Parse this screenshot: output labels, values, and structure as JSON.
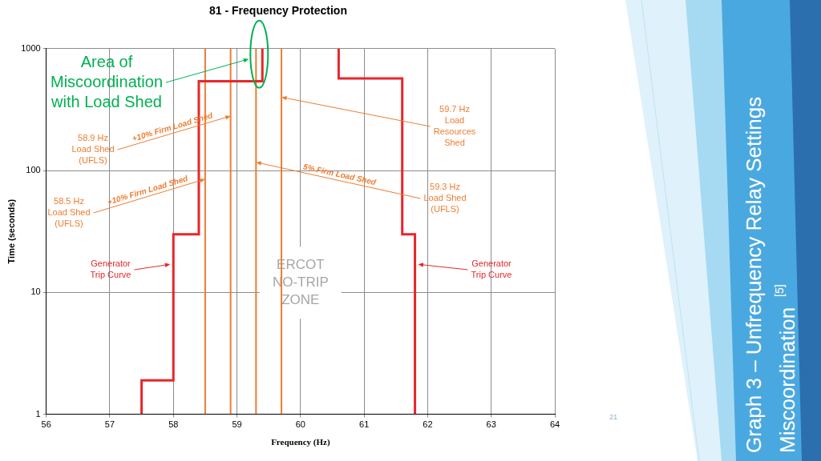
{
  "chart_data": {
    "type": "line",
    "title": "81 - Frequency Protection",
    "x_label": "Frequency (Hz)",
    "y_label": "Time (seconds)",
    "log": "y",
    "grid": true,
    "xlim": [
      56,
      64
    ],
    "xticks": [
      56,
      57,
      58,
      59,
      60,
      61,
      62,
      63,
      64
    ],
    "ylim": [
      1,
      1000
    ],
    "yticks": [
      1,
      10,
      100,
      1000
    ],
    "series": [
      {
        "color": "#e8262b",
        "x": [
          57.5,
          57.5,
          58,
          58,
          58.4,
          58.4,
          59.4,
          59.4
        ],
        "values": [
          1,
          1.9,
          1.9,
          30,
          30,
          540,
          540,
          1000
        ]
      },
      {
        "color": "#e8262b",
        "x": [
          60.6,
          60.6,
          61.6,
          61.6,
          61.8,
          61.8
        ],
        "values": [
          1000,
          570,
          570,
          30,
          30,
          1
        ]
      },
      {
        "color": "#ed7d31",
        "x": [
          58.5,
          58.5
        ],
        "values": [
          1,
          1000
        ]
      },
      {
        "color": "#ed7d31",
        "x": [
          58.9,
          58.9
        ],
        "values": [
          1,
          1000
        ]
      },
      {
        "color": "#ed7d31",
        "x": [
          59.3,
          59.3
        ],
        "values": [
          1,
          1000
        ]
      },
      {
        "color": "#ed7d31",
        "x": [
          59.7,
          59.7
        ],
        "values": [
          1,
          1000
        ]
      }
    ],
    "annotations": [
      {
        "text": "Area of\nMiscoordination\nwith Load Shed",
        "x": 59.35,
        "y": 900
      },
      {
        "text": "58.9 Hz\nLoad Shed\n(UFLS)",
        "x": 58.9,
        "y": 280,
        "note": "+10% Firm Load Shed"
      },
      {
        "text": "58.5 Hz\nLoad Shed\n(UFLS)",
        "x": 58.5,
        "y": 85,
        "note": "+10% Firm Load Shed"
      },
      {
        "text": "59.7 Hz\nLoad\nResources\nShed",
        "x": 59.7,
        "y": 400
      },
      {
        "text": "59.3 Hz\nLoad Shed\n(UFLS)",
        "x": 59.3,
        "y": 117,
        "note": "5% Firm Load Shed"
      },
      {
        "text": "Generator\nTrip Curve",
        "x": 57.95,
        "y": 17
      },
      {
        "text": "Generator\nTrip Curve",
        "x": 61.85,
        "y": 17
      }
    ],
    "zone_label": {
      "text": "ERCOT\nNO-TRIP\nZONE",
      "x": 60,
      "y": 12
    }
  },
  "slide": {
    "title": [
      "Graph 3 – Unfrequency Relay Settings",
      "Miscoordination"
    ],
    "reference": "[5]",
    "page_number": "21"
  }
}
